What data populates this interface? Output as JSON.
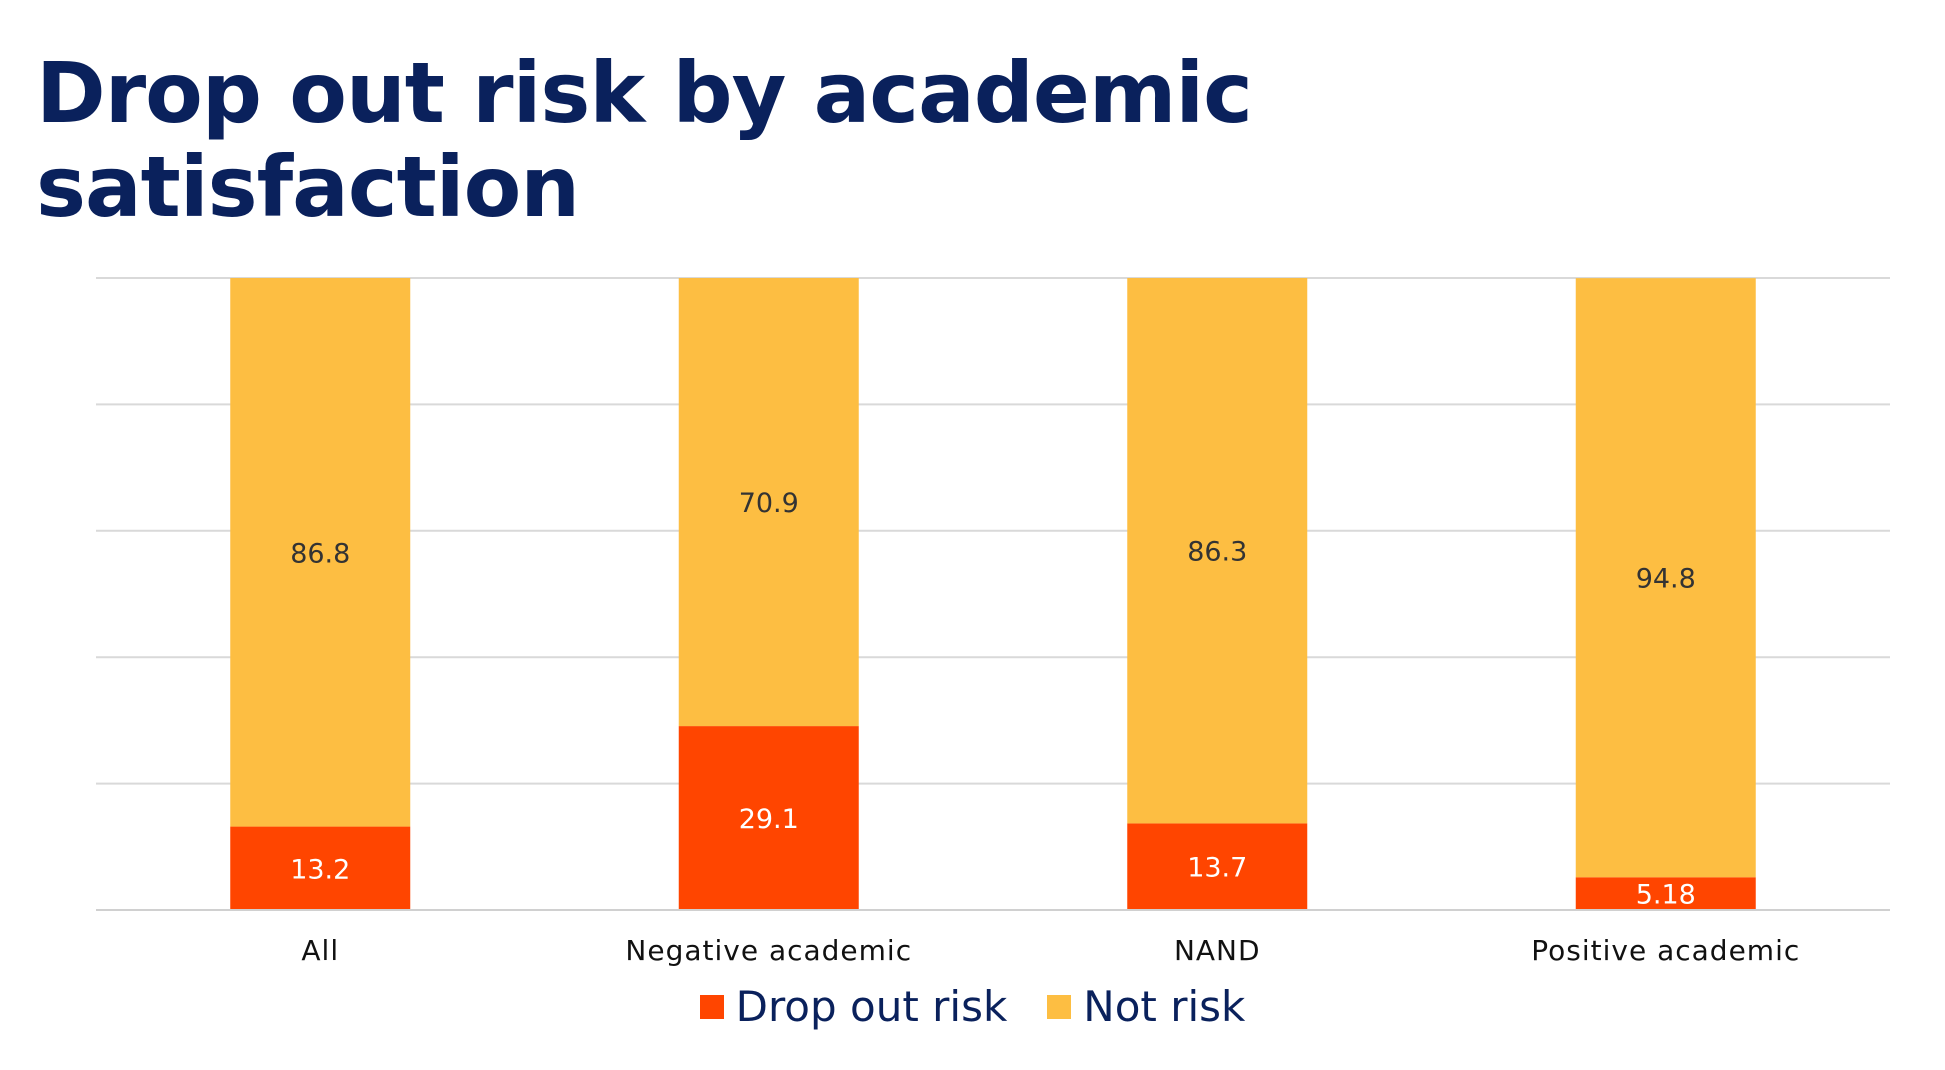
{
  "chart_data": {
    "type": "bar",
    "stacked": true,
    "title": "Drop out risk by academic satisfaction",
    "categories": [
      "All",
      "Negative academic",
      "NAND",
      "Positive academic"
    ],
    "series": [
      {
        "name": "Drop out risk",
        "values": [
          13.2,
          29.1,
          13.7,
          5.18
        ],
        "color": "#ff4500",
        "label_color": "#ffffff"
      },
      {
        "name": "Not risk",
        "values": [
          86.8,
          70.9,
          86.3,
          94.8
        ],
        "color": "#fdbe42",
        "label_color": "#333333"
      }
    ],
    "ylim": [
      0,
      100
    ],
    "yticks": [
      0,
      20,
      40,
      60,
      80,
      100
    ],
    "grid": true,
    "legend": "bottom-center",
    "xlabel": "",
    "ylabel": ""
  }
}
